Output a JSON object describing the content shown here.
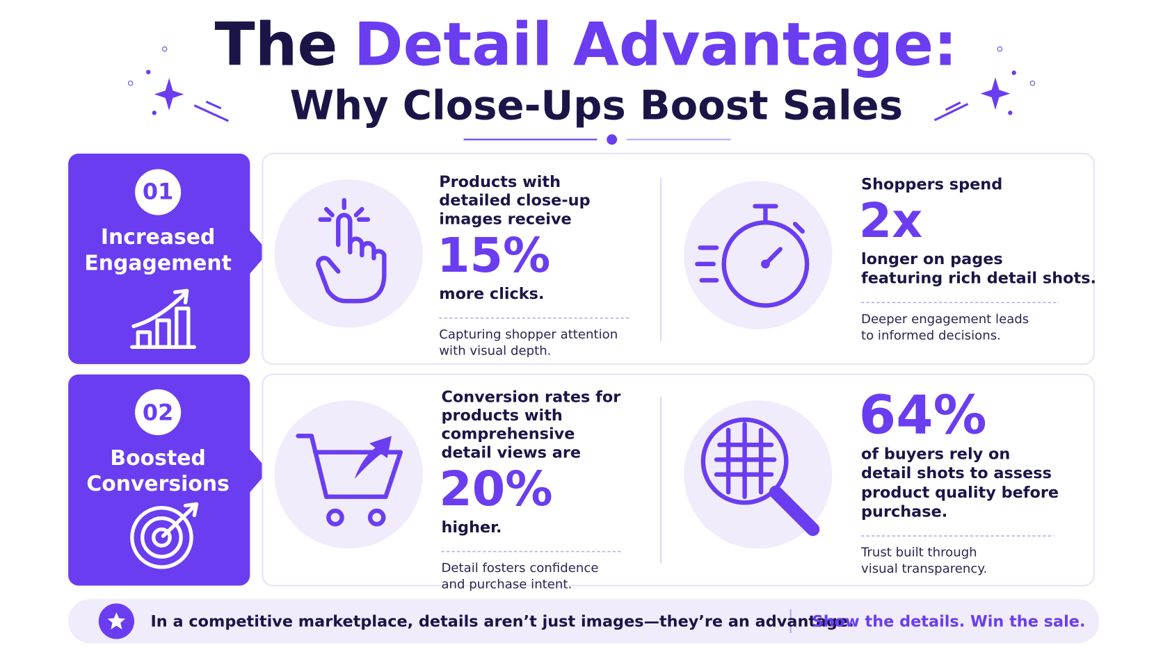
{
  "header": {
    "title_lead": "The",
    "title_accent": "Detail Advantage:",
    "subtitle": "Why Close-Ups Boost Sales"
  },
  "sections": [
    {
      "number": "01",
      "label_lines": [
        "Increased",
        "Engagement"
      ],
      "stats": [
        {
          "lead_lines": [
            "Products with",
            "detailed close-up",
            "images receive"
          ],
          "figure": "15%",
          "after_lines": [
            "more clicks."
          ],
          "note_lines": [
            "Capturing shopper attention",
            "with visual depth."
          ]
        },
        {
          "lead_lines": [
            "Shoppers spend"
          ],
          "figure": "2x",
          "after_lines": [
            "longer on pages",
            "featuring rich detail shots."
          ],
          "note_lines": [
            "Deeper engagement leads",
            "to informed decisions."
          ]
        }
      ]
    },
    {
      "number": "02",
      "label_lines": [
        "Boosted",
        "Conversions"
      ],
      "stats": [
        {
          "lead_lines": [
            "Conversion rates for",
            "products with",
            "comprehensive",
            "detail views are"
          ],
          "figure": "20%",
          "after_lines": [
            "higher."
          ],
          "note_lines": [
            "Detail fosters confidence",
            "and purchase intent."
          ]
        },
        {
          "lead_lines": [],
          "figure": "64%",
          "after_lines": [
            "of buyers rely on",
            "detail shots to assess",
            "product quality before",
            "purchase."
          ],
          "note_lines": [
            "Trust built through",
            "visual transparency."
          ]
        }
      ]
    }
  ],
  "footer": {
    "message": "In a competitive marketplace, details aren’t just images—they’re an advantage.",
    "tagline": "Show the details. Win the sale."
  }
}
